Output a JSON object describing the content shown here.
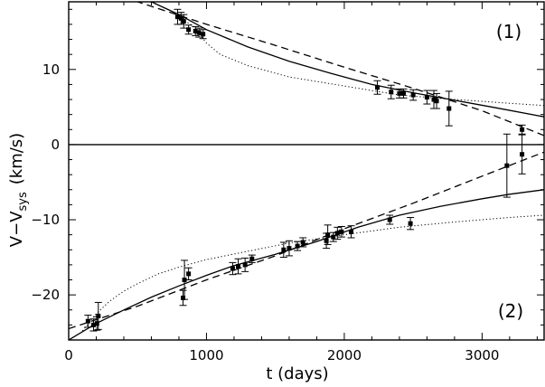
{
  "chart_data": {
    "type": "scatter",
    "xlabel": "t (days)",
    "ylabel_main": "V−V",
    "ylabel_sub": "sys",
    "ylabel_unit": "(km/s)",
    "xlim": [
      0,
      3450
    ],
    "ylim": [
      -26,
      19
    ],
    "xticks": [
      0,
      1000,
      2000,
      3000
    ],
    "yticks": [
      -20,
      -10,
      0,
      10
    ],
    "zero_line": 0,
    "annotations": [
      "(1)",
      "(2)"
    ],
    "series": [
      {
        "points": [
          {
            "x": 790,
            "y": 17.0,
            "err": 1.0
          },
          {
            "x": 815,
            "y": 16.8,
            "err": 0.8
          },
          {
            "x": 835,
            "y": 16.4,
            "err": 0.9
          },
          {
            "x": 870,
            "y": 15.3,
            "err": 0.6
          },
          {
            "x": 920,
            "y": 15.1,
            "err": 0.6
          },
          {
            "x": 945,
            "y": 14.9,
            "err": 0.6
          },
          {
            "x": 975,
            "y": 14.7,
            "err": 0.6
          },
          {
            "x": 2240,
            "y": 7.6,
            "err": 0.9
          },
          {
            "x": 2340,
            "y": 7.0,
            "err": 0.9
          },
          {
            "x": 2400,
            "y": 6.8,
            "err": 0.6
          },
          {
            "x": 2430,
            "y": 6.8,
            "err": 0.6
          },
          {
            "x": 2500,
            "y": 6.6,
            "err": 0.7
          },
          {
            "x": 2600,
            "y": 6.3,
            "err": 0.9
          },
          {
            "x": 2650,
            "y": 6.0,
            "err": 1.2
          },
          {
            "x": 2670,
            "y": 5.8,
            "err": 1.0
          },
          {
            "x": 2760,
            "y": 4.8,
            "err": 2.3
          },
          {
            "x": 3290,
            "y": 2.0,
            "err": 0.6
          }
        ]
      },
      {
        "points": [
          {
            "x": 140,
            "y": -23.5,
            "err": 0.8
          },
          {
            "x": 180,
            "y": -24.0,
            "err": 0.8
          },
          {
            "x": 205,
            "y": -23.8,
            "err": 0.9
          },
          {
            "x": 215,
            "y": -22.8,
            "err": 1.8
          },
          {
            "x": 830,
            "y": -20.4,
            "err": 1.0
          },
          {
            "x": 840,
            "y": -18.0,
            "err": 2.6
          },
          {
            "x": 870,
            "y": -17.2,
            "err": 0.8
          },
          {
            "x": 1190,
            "y": -16.5,
            "err": 0.8
          },
          {
            "x": 1230,
            "y": -16.2,
            "err": 1.0
          },
          {
            "x": 1280,
            "y": -16.0,
            "err": 0.9
          },
          {
            "x": 1330,
            "y": -15.2,
            "err": 0.5
          },
          {
            "x": 1560,
            "y": -14.0,
            "err": 1.0
          },
          {
            "x": 1600,
            "y": -13.8,
            "err": 1.0
          },
          {
            "x": 1660,
            "y": -13.5,
            "err": 0.6
          },
          {
            "x": 1700,
            "y": -13.0,
            "err": 0.6
          },
          {
            "x": 1870,
            "y": -12.8,
            "err": 1.0
          },
          {
            "x": 1880,
            "y": -12.0,
            "err": 1.3
          },
          {
            "x": 1920,
            "y": -12.3,
            "err": 0.6
          },
          {
            "x": 1950,
            "y": -11.8,
            "err": 0.8
          },
          {
            "x": 1980,
            "y": -11.6,
            "err": 0.7
          },
          {
            "x": 2050,
            "y": -11.6,
            "err": 0.8
          },
          {
            "x": 2330,
            "y": -10.0,
            "err": 0.6
          },
          {
            "x": 2480,
            "y": -10.5,
            "err": 0.8
          },
          {
            "x": 3180,
            "y": -2.8,
            "err": 4.2
          },
          {
            "x": 3290,
            "y": -1.3,
            "err": 2.6
          }
        ]
      }
    ],
    "curves": [
      {
        "style": "solid",
        "x": [
          0,
          200,
          400,
          600,
          800,
          1000,
          1300,
          1600,
          1900,
          2200,
          2500,
          2800,
          3100,
          3450
        ],
        "y": [
          22.5,
          21.6,
          20.5,
          19.0,
          17.3,
          15.3,
          13.0,
          11.1,
          9.5,
          8.0,
          6.9,
          5.9,
          4.9,
          3.7
        ]
      },
      {
        "style": "dashed",
        "x": [
          0,
          500,
          1000,
          1500,
          2000,
          2500,
          3000,
          3450
        ],
        "y": [
          22.0,
          19.0,
          16.0,
          13.2,
          10.3,
          7.5,
          4.5,
          1.2
        ]
      },
      {
        "style": "dotted",
        "x": [
          800,
          900,
          1000,
          1100,
          1300,
          1600,
          2000,
          2400,
          2800,
          3200,
          3450
        ],
        "y": [
          17.0,
          15.8,
          13.5,
          12.0,
          10.5,
          9.0,
          7.8,
          6.6,
          6.0,
          5.5,
          5.2
        ]
      },
      {
        "style": "solid",
        "x": [
          0,
          200,
          400,
          600,
          800,
          1000,
          1200,
          1500,
          1800,
          2100,
          2400,
          2700,
          3000,
          3200,
          3450
        ],
        "y": [
          -26.0,
          -23.8,
          -22.0,
          -20.3,
          -18.8,
          -17.4,
          -16.1,
          -14.6,
          -12.9,
          -11.0,
          -9.4,
          -8.2,
          -7.2,
          -6.6,
          -6.0
        ]
      },
      {
        "style": "dashed",
        "x": [
          0,
          500,
          1000,
          1500,
          2000,
          2500,
          3000,
          3450
        ],
        "y": [
          -24.5,
          -21.5,
          -18.0,
          -14.8,
          -11.2,
          -7.8,
          -4.2,
          -1.0
        ]
      },
      {
        "style": "dotted",
        "x": [
          100,
          200,
          300,
          400,
          500,
          650,
          800,
          1000,
          1300,
          1600,
          2000,
          2400,
          2800,
          3200,
          3450
        ],
        "y": [
          -24.8,
          -22.5,
          -20.8,
          -19.5,
          -18.5,
          -17.2,
          -16.3,
          -15.3,
          -14.2,
          -13.1,
          -12.0,
          -11.0,
          -10.3,
          -9.7,
          -9.4
        ]
      }
    ]
  }
}
